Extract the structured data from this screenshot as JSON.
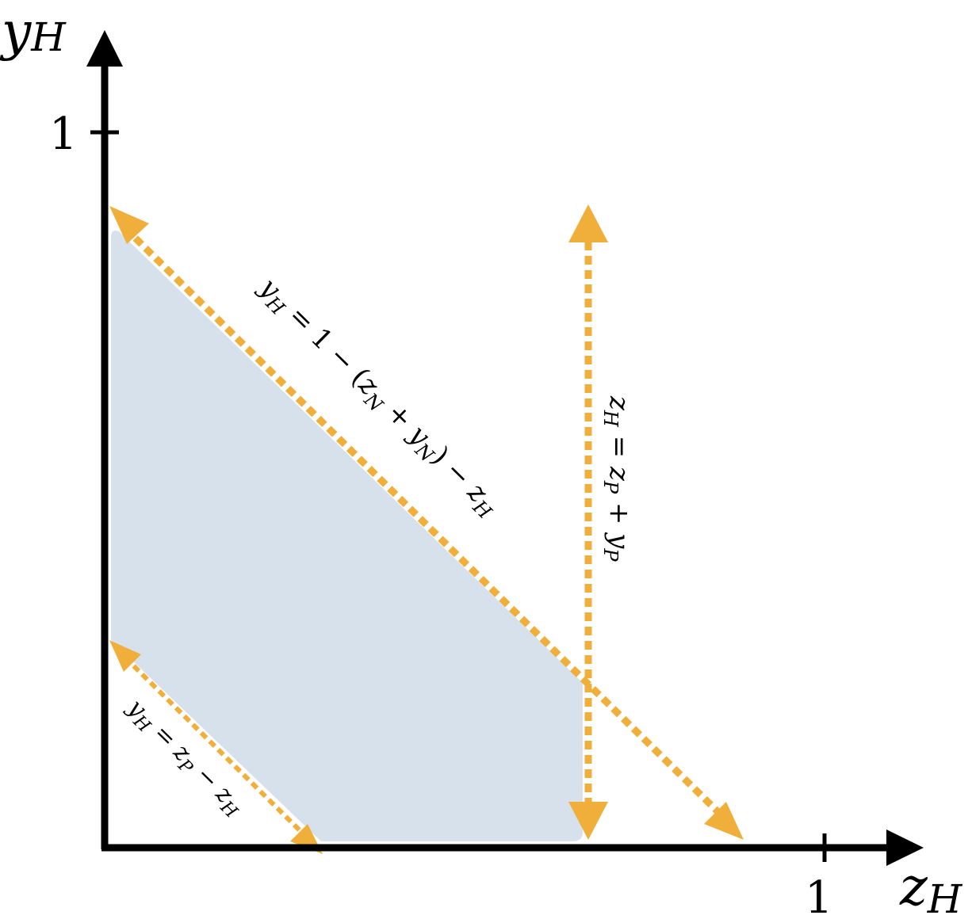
{
  "colors": {
    "axis": "#000000",
    "region": "#d6e1ec",
    "boundary": "#f0ae3a"
  },
  "axes": {
    "y_label": "y",
    "y_label_sub": "H",
    "x_label": "z",
    "x_label_sub": "H",
    "y_tick_label": "1",
    "x_tick_label": "1"
  },
  "lines": {
    "upper": {
      "lhs": "y",
      "lhs_sub": "H",
      "mid1": " = 1 − (",
      "z": "z",
      "z_sub": "N",
      "plus": " + ",
      "y": "y",
      "y_sub": "N",
      "mid2": ") − ",
      "z2": "z",
      "z2_sub": "H"
    },
    "vertical": {
      "lhs": "z",
      "lhs_sub": "H",
      "eq": " = ",
      "z": "z",
      "z_sub": "P",
      "plus": " + ",
      "y": "y",
      "y_sub": "P"
    },
    "lower": {
      "lhs": "y",
      "lhs_sub": "H",
      "eq": " = ",
      "z": "z",
      "z_sub": "P",
      "minus": " − ",
      "z2": "z",
      "z2_sub": "H"
    }
  }
}
